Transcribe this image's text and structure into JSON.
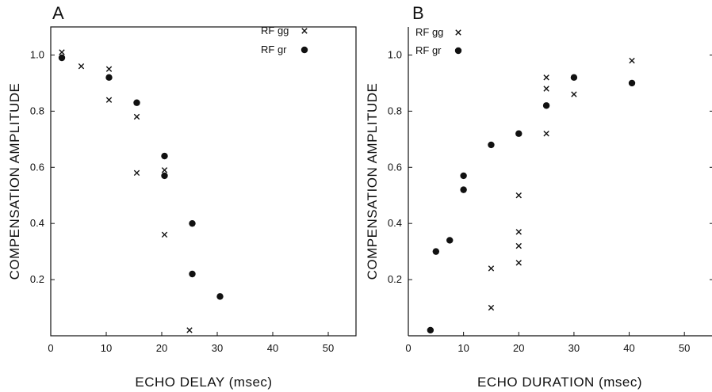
{
  "chart_data": [
    {
      "panel": "A",
      "type": "scatter",
      "title": "",
      "xlabel": "ECHO DELAY (msec)",
      "ylabel": "COMPENSATION AMPLITUDE",
      "xlim": [
        0,
        55
      ],
      "ylim": [
        0,
        1.1
      ],
      "x_ticks": [
        "0",
        "10",
        "20",
        "30",
        "40",
        "50"
      ],
      "y_ticks": [
        "0.2",
        "0.4",
        "0.6",
        "0.8",
        "1.0"
      ],
      "legend_position": "top-right",
      "series": [
        {
          "name": "RF gg",
          "marker": "x",
          "points": [
            [
              2,
              1.01
            ],
            [
              5.5,
              0.96
            ],
            [
              10.5,
              0.95
            ],
            [
              10.5,
              0.84
            ],
            [
              15.5,
              0.78
            ],
            [
              15.5,
              0.58
            ],
            [
              20.5,
              0.59
            ],
            [
              20.5,
              0.36
            ],
            [
              25,
              0.02
            ]
          ]
        },
        {
          "name": "RF gr",
          "marker": "dot",
          "points": [
            [
              2,
              0.99
            ],
            [
              10.5,
              0.92
            ],
            [
              15.5,
              0.83
            ],
            [
              20.5,
              0.64
            ],
            [
              20.5,
              0.57
            ],
            [
              25.5,
              0.4
            ],
            [
              25.5,
              0.22
            ],
            [
              30.5,
              0.14
            ]
          ]
        }
      ]
    },
    {
      "panel": "B",
      "type": "scatter",
      "title": "",
      "xlabel": "ECHO DURATION (msec)",
      "ylabel": "COMPENSATION AMPLITUDE",
      "xlim": [
        0,
        55
      ],
      "ylim": [
        0,
        1.1
      ],
      "x_ticks": [
        "0",
        "10",
        "20",
        "30",
        "40",
        "50"
      ],
      "y_ticks": [
        "0.2",
        "0.4",
        "0.6",
        "0.8",
        "1.0"
      ],
      "legend_position": "top-left",
      "series": [
        {
          "name": "RF gg",
          "marker": "x",
          "points": [
            [
              15,
              0.1
            ],
            [
              15,
              0.24
            ],
            [
              20,
              0.26
            ],
            [
              20,
              0.32
            ],
            [
              20,
              0.37
            ],
            [
              20,
              0.5
            ],
            [
              25,
              0.72
            ],
            [
              25,
              0.88
            ],
            [
              25,
              0.92
            ],
            [
              30,
              0.86
            ],
            [
              40.5,
              0.98
            ]
          ]
        },
        {
          "name": "RF gr",
          "marker": "dot",
          "points": [
            [
              4,
              0.02
            ],
            [
              5,
              0.3
            ],
            [
              7.5,
              0.34
            ],
            [
              10,
              0.57
            ],
            [
              10,
              0.52
            ],
            [
              15,
              0.68
            ],
            [
              20,
              0.72
            ],
            [
              25,
              0.82
            ],
            [
              30,
              0.92
            ],
            [
              40.5,
              0.9
            ]
          ]
        }
      ]
    }
  ]
}
